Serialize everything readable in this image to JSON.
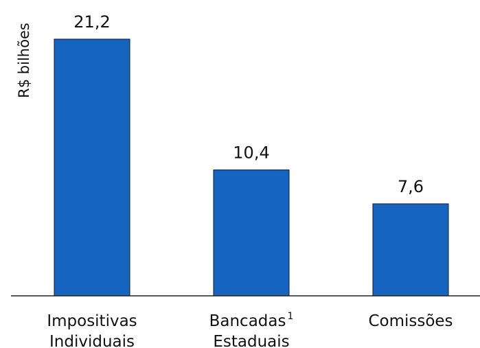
{
  "chart_data": {
    "type": "bar",
    "ylabel": "R$ bilhões",
    "categories": [
      {
        "lines": [
          "Impositivas",
          "Individuais"
        ],
        "sup": ""
      },
      {
        "lines": [
          "Bancadas",
          "Estaduais"
        ],
        "sup": "1"
      },
      {
        "lines": [
          "Comissões"
        ],
        "sup": ""
      }
    ],
    "values": [
      21.2,
      10.4,
      7.6
    ],
    "value_labels": [
      "21,2",
      "10,4",
      "7,6"
    ],
    "ylim": [
      0,
      21.2
    ],
    "bar_color": "#1565C0",
    "bar_stroke": "#0d1a33",
    "axis_color": "#222222",
    "grid": false
  }
}
